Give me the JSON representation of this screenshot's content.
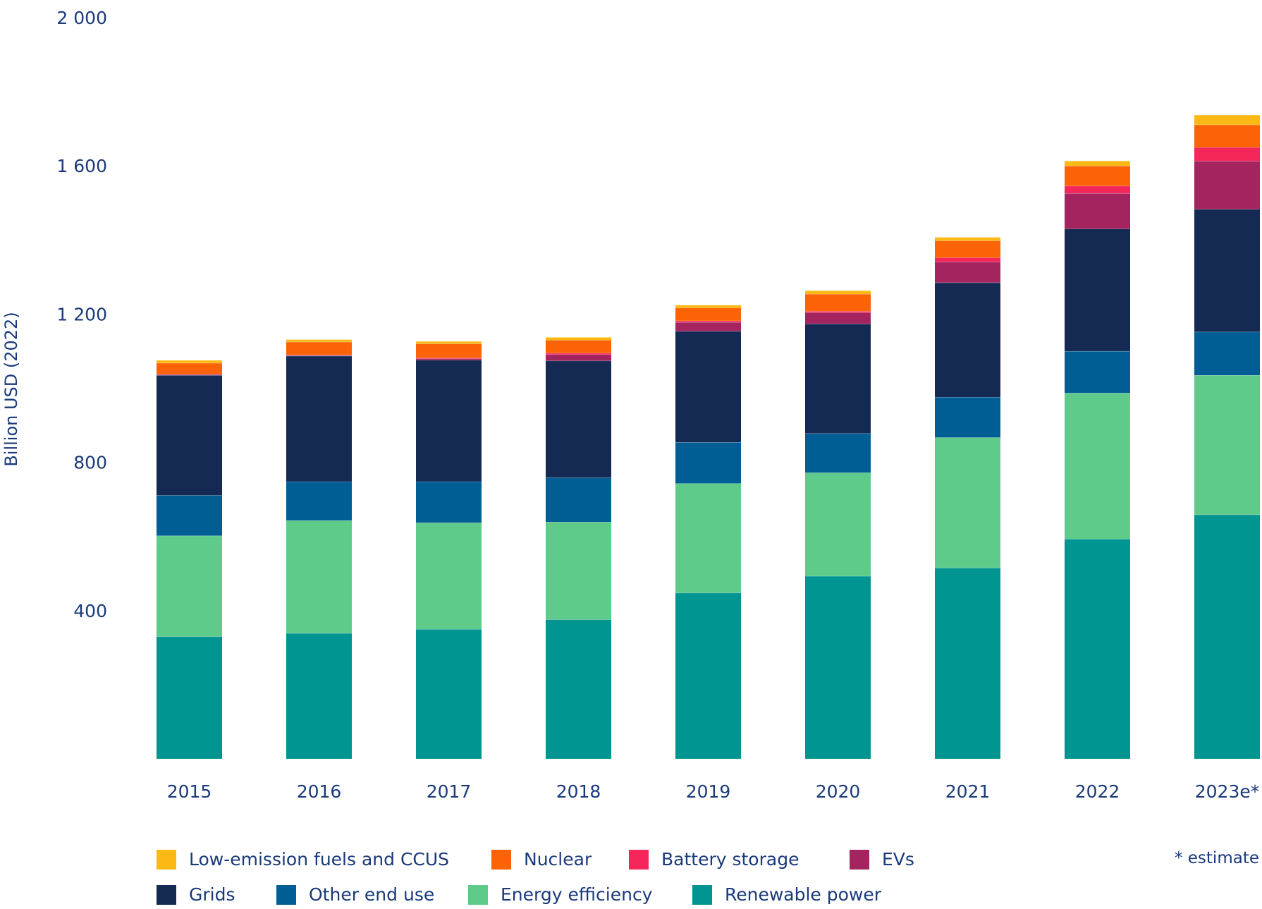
{
  "chart_data": {
    "type": "bar",
    "stacked": true,
    "title": "",
    "xlabel": "",
    "ylabel": "Billion USD (2022)",
    "ylim": [
      0,
      2000
    ],
    "yticks": [
      400,
      800,
      1200,
      1600,
      2000
    ],
    "ytick_labels": [
      "400",
      "800",
      "1 200",
      "1 600",
      "2 000"
    ],
    "grid": false,
    "legend_position": "bottom",
    "categories": [
      "2015",
      "2016",
      "2017",
      "2018",
      "2019",
      "2020",
      "2021",
      "2022",
      "2023e*"
    ],
    "series": [
      {
        "name": "Renewable power",
        "color": "#009590",
        "values": [
          330,
          339,
          350,
          376,
          448,
          493,
          515,
          593,
          659
        ]
      },
      {
        "name": "Energy efficiency",
        "color": "#5ecb8a",
        "values": [
          272,
          304,
          287,
          263,
          295,
          279,
          352,
          394,
          376
        ]
      },
      {
        "name": "Other end use",
        "color": "#005e94",
        "values": [
          109,
          105,
          111,
          120,
          111,
          106,
          109,
          113,
          117
        ]
      },
      {
        "name": "Grids",
        "color": "#142a52",
        "values": [
          324,
          339,
          328,
          315,
          300,
          296,
          309,
          330,
          331
        ]
      },
      {
        "name": "EVs",
        "color": "#a4245f",
        "values": [
          2,
          2,
          4,
          17,
          24,
          30,
          56,
          96,
          130
        ]
      },
      {
        "name": "Battery storage",
        "color": "#f5265a",
        "values": [
          1,
          1,
          2,
          4,
          4,
          4,
          11,
          20,
          37
        ]
      },
      {
        "name": "Nuclear",
        "color": "#fb6306",
        "values": [
          30,
          35,
          38,
          35,
          35,
          46,
          46,
          54,
          61
        ]
      },
      {
        "name": "Low-emission fuels and CCUS",
        "color": "#fdb913",
        "values": [
          7,
          6,
          6,
          7,
          7,
          9,
          9,
          13,
          26
        ]
      }
    ],
    "legend_order": [
      "Low-emission fuels and CCUS",
      "Nuclear",
      "Battery storage",
      "EVs",
      "Grids",
      "Other end use",
      "Energy efficiency",
      "Renewable power"
    ],
    "note": "* estimate"
  }
}
